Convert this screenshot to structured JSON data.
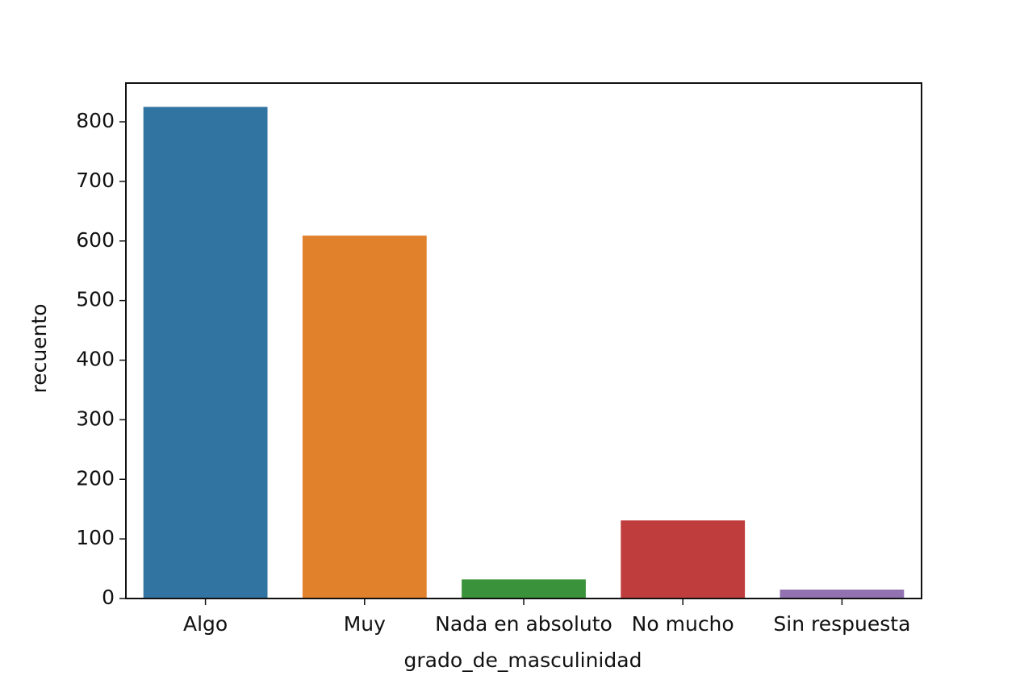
{
  "chart_data": {
    "type": "bar",
    "x_label": "grado_de_masculinidad",
    "y_label": "recuento",
    "categories": [
      "Algo",
      "Muy",
      "Nada en absoluto",
      "No mucho",
      "Sin respuesta"
    ],
    "values": [
      825,
      609,
      32,
      131,
      15
    ],
    "colors": [
      "#3274a1",
      "#e1812c",
      "#3a923a",
      "#c03d3e",
      "#9372b2"
    ],
    "ylim": [
      0,
      865
    ],
    "yticks": [
      0,
      100,
      200,
      300,
      400,
      500,
      600,
      700,
      800
    ],
    "grid": false
  }
}
